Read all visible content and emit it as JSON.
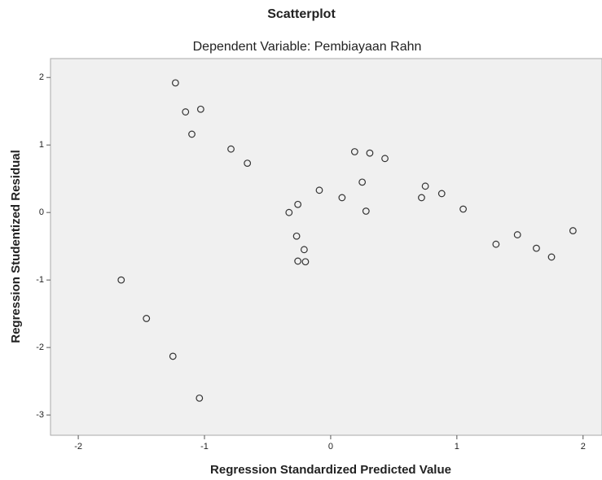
{
  "chart_data": {
    "type": "scatter",
    "title": "Scatterplot",
    "subtitle": "Dependent Variable: Pembiayaan Rahn",
    "xlabel": "Regression Standardized Predicted Value",
    "ylabel": "Regression Studentized Residual",
    "x": [
      -1.23,
      -1.15,
      -1.03,
      -1.1,
      -0.79,
      -0.66,
      0.19,
      0.31,
      0.43,
      0.25,
      -0.09,
      -0.26,
      0.09,
      -0.33,
      0.28,
      0.75,
      0.72,
      0.88,
      1.05,
      -0.27,
      -0.21,
      -0.26,
      -0.2,
      1.31,
      1.48,
      1.63,
      1.75,
      1.92,
      -1.66,
      -1.46,
      -1.25,
      -1.04
    ],
    "y": [
      1.92,
      1.49,
      1.53,
      1.16,
      0.94,
      0.73,
      0.9,
      0.88,
      0.8,
      0.45,
      0.33,
      0.12,
      0.22,
      0.0,
      0.02,
      0.39,
      0.22,
      0.28,
      0.05,
      -0.35,
      -0.55,
      -0.72,
      -0.73,
      -0.47,
      -0.33,
      -0.53,
      -0.66,
      -0.27,
      -1.0,
      -1.57,
      -2.13,
      -2.75
    ],
    "color": "#333333",
    "xlim": [
      -2.22,
      2.15
    ],
    "ylim": [
      -3.3,
      2.28
    ],
    "xticks": [
      -2,
      -1,
      0,
      1,
      2
    ],
    "yticks": [
      -3,
      -2,
      -1,
      0,
      1,
      2
    ]
  }
}
